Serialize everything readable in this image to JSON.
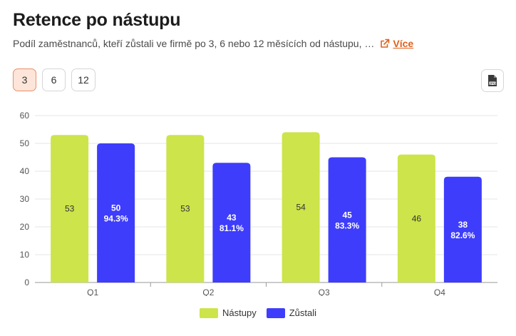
{
  "header": {
    "title": "Retence po nástupu",
    "subtitle": "Podíl zaměstnanců, kteří zůstali ve firmě po 3, 6 nebo 12 měsících od nástupu, …",
    "more_label": "Více"
  },
  "period_selector": {
    "options": [
      "3",
      "6",
      "12"
    ],
    "selected": "3"
  },
  "export": {
    "icon": "jpg-file-icon"
  },
  "colors": {
    "accent": "#e0601b",
    "nastupy": "#cde44b",
    "zustali": "#3d3dfb"
  },
  "chart_data": {
    "type": "bar",
    "categories": [
      "Q1",
      "Q2",
      "Q3",
      "Q4"
    ],
    "series": [
      {
        "name": "Nástupy",
        "values": [
          53,
          53,
          54,
          46
        ]
      },
      {
        "name": "Zůstali",
        "values": [
          50,
          43,
          45,
          38
        ]
      }
    ],
    "percent_labels": [
      "94.3%",
      "81.1%",
      "83.3%",
      "82.6%"
    ],
    "ylim": [
      0,
      60
    ],
    "yticks": [
      0,
      10,
      20,
      30,
      40,
      50,
      60
    ],
    "grid": true,
    "legend_position": "bottom"
  }
}
